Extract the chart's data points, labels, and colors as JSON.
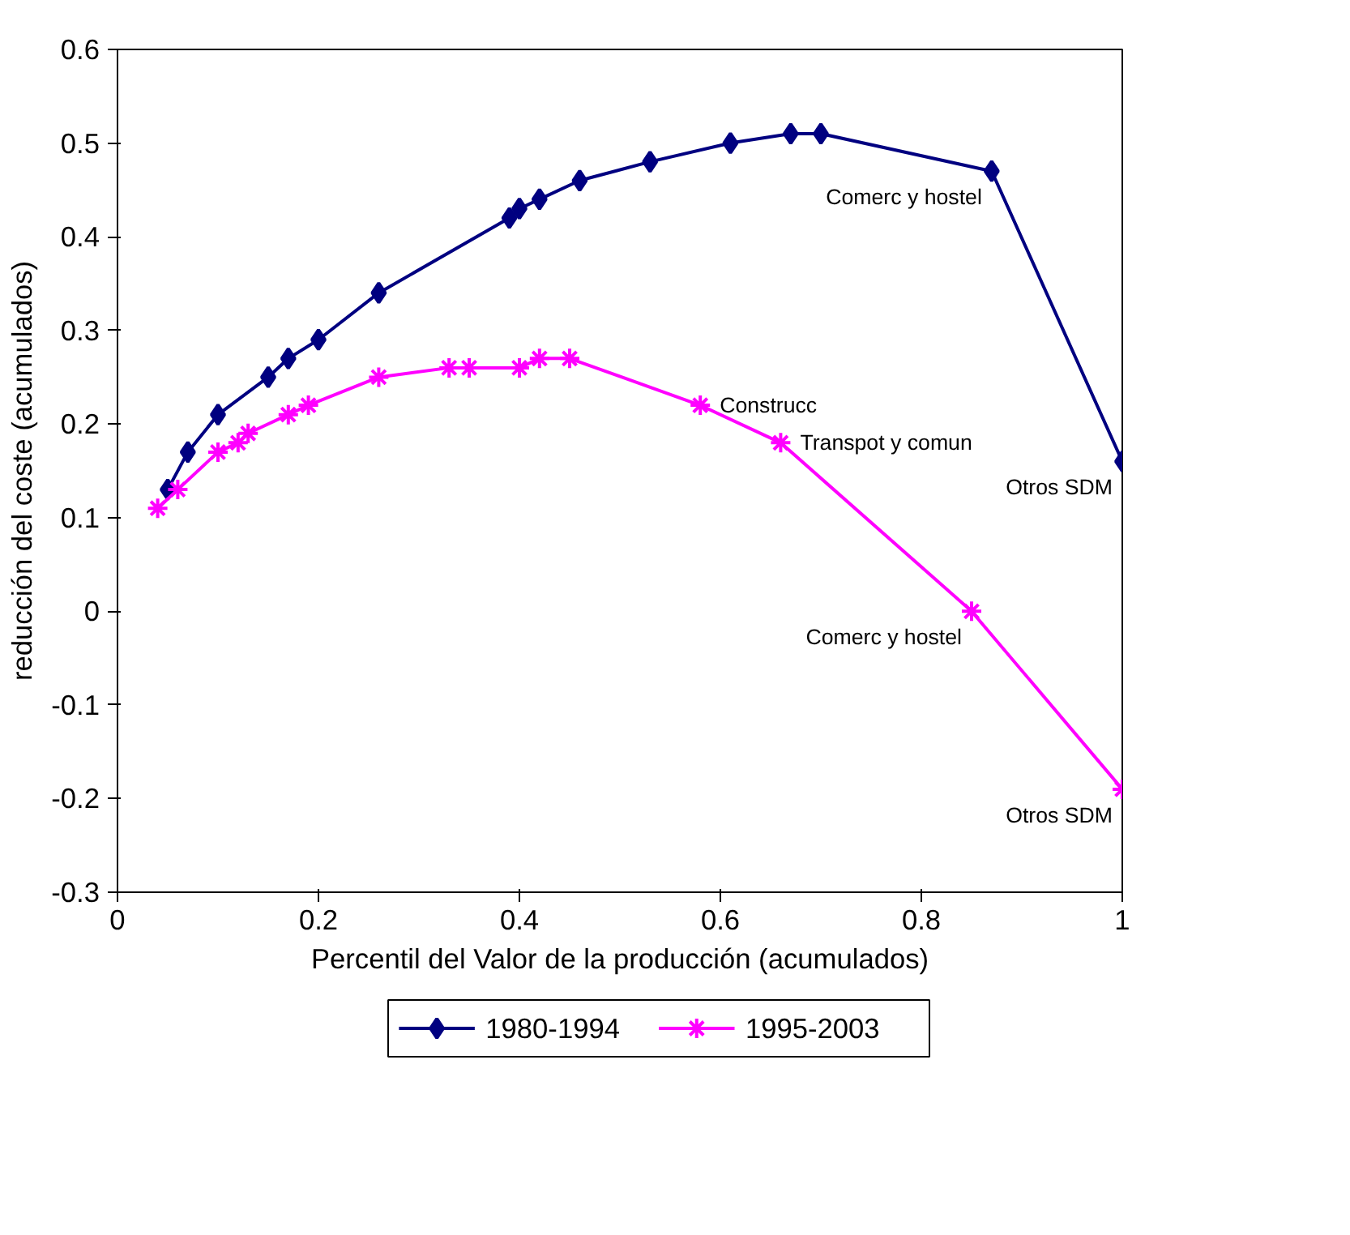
{
  "chart_data": {
    "type": "line",
    "xlabel": "Percentil del Valor de la producción (acumulados)",
    "ylabel": "reducción del coste (acumulados)",
    "xlim": [
      0,
      1
    ],
    "ylim": [
      -0.3,
      0.6
    ],
    "xticks": [
      0,
      0.2,
      0.4,
      0.6,
      0.8,
      1
    ],
    "yticks": [
      -0.3,
      -0.2,
      -0.1,
      0,
      0.1,
      0.2,
      0.3,
      0.4,
      0.5,
      0.6
    ],
    "grid": false,
    "legend": "bottom",
    "series": [
      {
        "name": "1980-1994",
        "color": "#000080",
        "marker": "diamond",
        "x": [
          0.05,
          0.07,
          0.1,
          0.15,
          0.17,
          0.2,
          0.26,
          0.39,
          0.4,
          0.42,
          0.46,
          0.53,
          0.61,
          0.67,
          0.7,
          0.87,
          1.0
        ],
        "values": [
          0.13,
          0.17,
          0.21,
          0.25,
          0.27,
          0.29,
          0.34,
          0.42,
          0.43,
          0.44,
          0.46,
          0.48,
          0.5,
          0.51,
          0.51,
          0.47,
          0.16
        ]
      },
      {
        "name": "1995-2003",
        "color": "#ff00ff",
        "marker": "cross",
        "x": [
          0.04,
          0.06,
          0.1,
          0.12,
          0.13,
          0.17,
          0.19,
          0.26,
          0.33,
          0.35,
          0.4,
          0.42,
          0.45,
          0.58,
          0.66,
          0.85,
          1.0
        ],
        "values": [
          0.11,
          0.13,
          0.17,
          0.18,
          0.19,
          0.21,
          0.22,
          0.25,
          0.26,
          0.26,
          0.26,
          0.27,
          0.27,
          0.22,
          0.18,
          0.0,
          -0.19
        ]
      }
    ],
    "annotations": [
      {
        "text": "Comerc y hostel",
        "x": 0.87,
        "y": 0.47
      },
      {
        "text": "Otros SDM",
        "x": 1.0,
        "y": 0.16
      },
      {
        "text": "Construcc",
        "x": 0.58,
        "y": 0.22
      },
      {
        "text": "Transpot y comun",
        "x": 0.66,
        "y": 0.18
      },
      {
        "text": "Comerc y hostel",
        "x": 0.85,
        "y": 0.0
      },
      {
        "text": "Otros SDM",
        "x": 1.0,
        "y": -0.19
      }
    ]
  }
}
